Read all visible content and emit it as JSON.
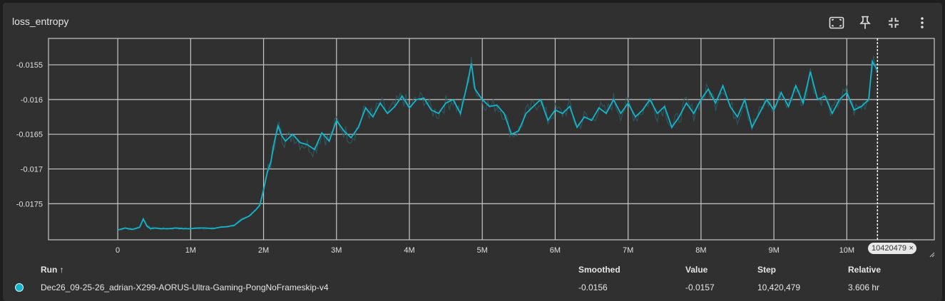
{
  "card": {
    "title": "loss_entropy"
  },
  "toolbar": {
    "icons": [
      "fit-domain-icon",
      "pin-icon",
      "collapse-icon",
      "more-vert-icon"
    ]
  },
  "hover": {
    "step_badge": "10420479",
    "close_glyph": "×"
  },
  "colors": {
    "series": "#12b5cb",
    "raw": "#2c5a60",
    "grid": "#c8c8c8",
    "background": "#303030"
  },
  "chart_data": {
    "type": "line",
    "title": "loss_entropy",
    "xlabel": "",
    "ylabel": "",
    "xlim": [
      -950000,
      11200000
    ],
    "ylim": [
      -0.01802,
      -0.01512
    ],
    "x_ticks": [
      0,
      1000000,
      2000000,
      3000000,
      4000000,
      5000000,
      6000000,
      7000000,
      8000000,
      9000000,
      10000000
    ],
    "x_tick_labels": [
      "0",
      "1M",
      "2M",
      "3M",
      "4M",
      "5M",
      "6M",
      "7M",
      "8M",
      "9M",
      "10M"
    ],
    "y_ticks": [
      -0.0155,
      -0.016,
      -0.0165,
      -0.017,
      -0.0175
    ],
    "y_tick_labels": [
      "-0.0155",
      "-0.016",
      "-0.0165",
      "-0.017",
      "-0.0175"
    ],
    "grid": true,
    "hover_step": 10420479,
    "series": [
      {
        "name": "Dec26_09-25-26_adrian-X299-AORUS-Ultra-Gaming-PongNoFrameskip-v4",
        "smoothing": "smoothed",
        "x": [
          0,
          100000,
          200000,
          300000,
          350000,
          400000,
          450000,
          500000,
          600000,
          700000,
          800000,
          900000,
          1000000,
          1100000,
          1200000,
          1300000,
          1400000,
          1500000,
          1600000,
          1700000,
          1800000,
          1900000,
          1950000,
          2000000,
          2050000,
          2100000,
          2150000,
          2200000,
          2250000,
          2300000,
          2400000,
          2500000,
          2600000,
          2700000,
          2800000,
          2900000,
          3000000,
          3100000,
          3200000,
          3300000,
          3400000,
          3500000,
          3600000,
          3700000,
          3800000,
          3900000,
          4000000,
          4100000,
          4200000,
          4300000,
          4400000,
          4500000,
          4600000,
          4700000,
          4800000,
          4850000,
          4900000,
          5000000,
          5100000,
          5200000,
          5300000,
          5400000,
          5500000,
          5600000,
          5700000,
          5800000,
          5900000,
          6000000,
          6100000,
          6200000,
          6300000,
          6400000,
          6500000,
          6600000,
          6700000,
          6800000,
          6900000,
          7000000,
          7100000,
          7200000,
          7300000,
          7400000,
          7500000,
          7600000,
          7700000,
          7800000,
          7900000,
          8000000,
          8100000,
          8200000,
          8300000,
          8400000,
          8500000,
          8600000,
          8700000,
          8800000,
          8900000,
          9000000,
          9100000,
          9200000,
          9300000,
          9400000,
          9500000,
          9600000,
          9700000,
          9800000,
          9900000,
          10000000,
          10100000,
          10200000,
          10300000,
          10350000,
          10420479
        ],
        "values": [
          -0.01788,
          -0.01785,
          -0.01787,
          -0.01784,
          -0.01772,
          -0.01782,
          -0.01786,
          -0.01785,
          -0.01786,
          -0.01786,
          -0.01785,
          -0.01786,
          -0.01786,
          -0.01785,
          -0.01785,
          -0.01786,
          -0.01784,
          -0.01783,
          -0.01781,
          -0.01773,
          -0.01768,
          -0.01758,
          -0.01752,
          -0.0173,
          -0.01705,
          -0.0169,
          -0.0166,
          -0.01638,
          -0.01652,
          -0.0166,
          -0.0165,
          -0.01662,
          -0.01665,
          -0.01672,
          -0.01648,
          -0.0166,
          -0.0163,
          -0.01645,
          -0.01655,
          -0.0164,
          -0.01612,
          -0.01625,
          -0.01605,
          -0.0162,
          -0.0161,
          -0.01595,
          -0.01612,
          -0.016,
          -0.01598,
          -0.01615,
          -0.0162,
          -0.01605,
          -0.016,
          -0.0162,
          -0.01575,
          -0.01548,
          -0.01585,
          -0.016,
          -0.0161,
          -0.01608,
          -0.0162,
          -0.0165,
          -0.01645,
          -0.0162,
          -0.0161,
          -0.016,
          -0.0163,
          -0.01615,
          -0.0162,
          -0.0161,
          -0.0164,
          -0.01625,
          -0.0163,
          -0.01612,
          -0.0162,
          -0.016,
          -0.0162,
          -0.01605,
          -0.01625,
          -0.01615,
          -0.016,
          -0.0162,
          -0.0161,
          -0.0164,
          -0.01625,
          -0.01605,
          -0.0162,
          -0.016,
          -0.01585,
          -0.01605,
          -0.0158,
          -0.0161,
          -0.01625,
          -0.016,
          -0.0164,
          -0.0162,
          -0.016,
          -0.01615,
          -0.0159,
          -0.0161,
          -0.0158,
          -0.01605,
          -0.0156,
          -0.016,
          -0.01595,
          -0.0162,
          -0.016,
          -0.0159,
          -0.01615,
          -0.0161,
          -0.016,
          -0.01545,
          -0.01558
        ]
      }
    ]
  },
  "run_table": {
    "headers": {
      "run": "Run ↑",
      "smoothed": "Smoothed",
      "value": "Value",
      "step": "Step",
      "relative": "Relative"
    },
    "rows": [
      {
        "run": "Dec26_09-25-26_adrian-X299-AORUS-Ultra-Gaming-PongNoFrameskip-v4",
        "smoothed": "-0.0156",
        "value": "-0.0157",
        "step": "10,420,479",
        "relative": "3.606 hr"
      }
    ]
  }
}
